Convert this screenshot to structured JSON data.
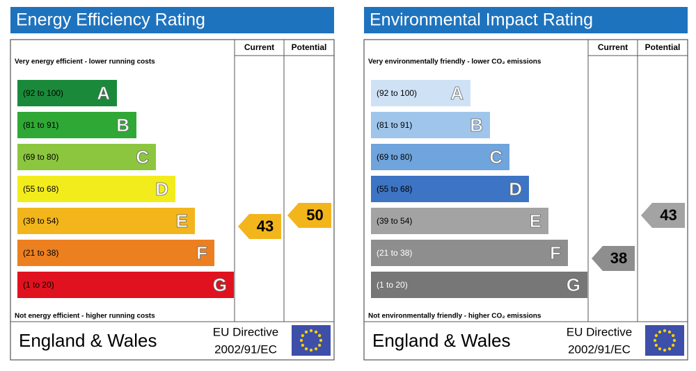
{
  "panels": [
    {
      "title": "Energy Efficiency Rating",
      "header_current": "Current",
      "header_potential": "Potential",
      "top_note": "Very energy efficient - lower running costs",
      "bottom_note": "Not energy efficient - higher running costs",
      "bands": [
        {
          "range": "(92 to 100)",
          "letter": "A",
          "color": "#1a8a3a",
          "text_color": "#000"
        },
        {
          "range": "(81 to 91)",
          "letter": "B",
          "color": "#2fa836",
          "text_color": "#000"
        },
        {
          "range": "(69 to 80)",
          "letter": "C",
          "color": "#8cc63f",
          "text_color": "#000"
        },
        {
          "range": "(55 to 68)",
          "letter": "D",
          "color": "#f2ec1c",
          "text_color": "#000"
        },
        {
          "range": "(39 to 54)",
          "letter": "E",
          "color": "#f2b51c",
          "text_color": "#000"
        },
        {
          "range": "(21 to 38)",
          "letter": "F",
          "color": "#ec7f20",
          "text_color": "#000"
        },
        {
          "range": "(1 to 20)",
          "letter": "G",
          "color": "#e0121f",
          "text_color": "#000"
        }
      ],
      "current": 43,
      "potential": 50,
      "region": "England & Wales",
      "directive": "EU Directive",
      "directive_code": "2002/91/EC"
    },
    {
      "title": "Environmental Impact Rating",
      "header_current": "Current",
      "header_potential": "Potential",
      "top_note": "Very environmentally friendly - lower CO₂ emissions",
      "bottom_note": "Not environmentally friendly - higher CO₂ emissions",
      "bands": [
        {
          "range": "(92 to 100)",
          "letter": "A",
          "color": "#cfe2f5",
          "text_color": "#000"
        },
        {
          "range": "(81 to 91)",
          "letter": "B",
          "color": "#9fc5ea",
          "text_color": "#000"
        },
        {
          "range": "(69 to 80)",
          "letter": "C",
          "color": "#6fa4dc",
          "text_color": "#000"
        },
        {
          "range": "(55 to 68)",
          "letter": "D",
          "color": "#3d74c4",
          "text_color": "#000"
        },
        {
          "range": "(39 to 54)",
          "letter": "E",
          "color": "#a3a3a3",
          "text_color": "#000"
        },
        {
          "range": "(21 to 38)",
          "letter": "F",
          "color": "#8e8e8e",
          "text_color": "#fff"
        },
        {
          "range": "(1 to 20)",
          "letter": "G",
          "color": "#777777",
          "text_color": "#fff"
        }
      ],
      "current": 38,
      "potential": 43,
      "region": "England & Wales",
      "directive": "EU Directive",
      "directive_code": "2002/91/EC"
    }
  ]
}
